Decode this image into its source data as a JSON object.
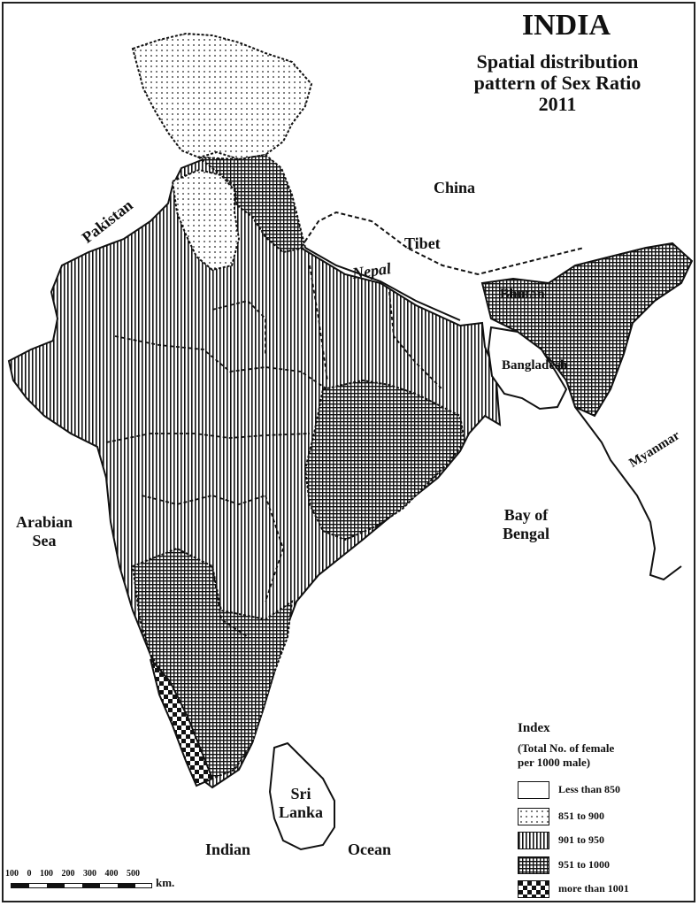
{
  "map": {
    "title": "INDIA",
    "subtitle_lines": [
      "Spatial distribution",
      "pattern of Sex Ratio",
      "2011"
    ],
    "labels": {
      "china": "China",
      "tibet": "Tibet",
      "nepal": "Nepal",
      "pakistan": "Pakistan",
      "bhutan": "Bhutan",
      "bangladesh": "Bangladesh",
      "myanmar": "Myanmar",
      "arabian_sea": [
        "Arabian",
        "Sea"
      ],
      "bay_of_bengal": [
        "Bay of",
        "Bengal"
      ],
      "sri_lanka": [
        "Sri",
        "Lanka"
      ],
      "indian": "Indian",
      "ocean": "Ocean"
    },
    "legend": {
      "title": "Index",
      "subtitle_lines": [
        "(Total No. of female",
        "per 1000 male)"
      ],
      "items": [
        {
          "label": "Less than 850",
          "pattern": "blank"
        },
        {
          "label": "851 to 900",
          "pattern": "dots"
        },
        {
          "label": "901 to 950",
          "pattern": "vertical-lines"
        },
        {
          "label": "951 to 1000",
          "pattern": "grid"
        },
        {
          "label": "more than 1001",
          "pattern": "checker"
        }
      ]
    },
    "scale_bar": {
      "ticks": [
        "100",
        "0",
        "100",
        "200",
        "300",
        "400",
        "500"
      ],
      "unit": "km."
    }
  }
}
